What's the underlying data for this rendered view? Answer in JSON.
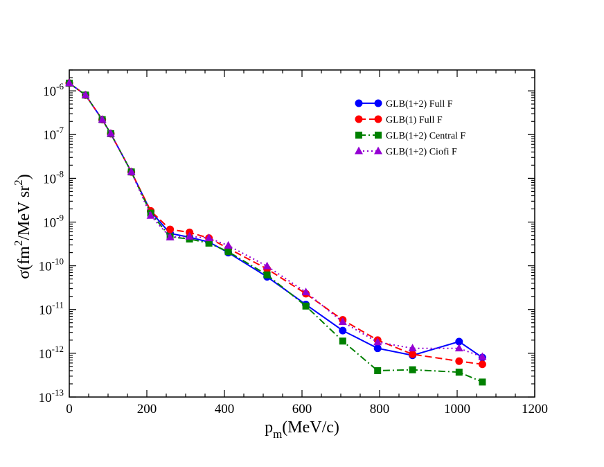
{
  "chart_data": {
    "type": "line",
    "title": "",
    "xlabel": "p_m(MeV/c)",
    "xlabel_main": "p",
    "xlabel_sub": "m",
    "xlabel_rest": "(MeV/c)",
    "ylabel": "σ(fm^2/MeV sr^2)",
    "ylabel_start": "σ(fm",
    "ylabel_sup1": "2",
    "ylabel_mid": "/MeV sr",
    "ylabel_sup2": "2",
    "ylabel_end": ")",
    "xlim": [
      0,
      1200
    ],
    "ylim": [
      1e-13,
      3e-06
    ],
    "yscale": "log",
    "legend_position": "top-right",
    "x_tick_labels": [
      "0",
      "200",
      "400",
      "600",
      "800",
      "1000",
      "1200"
    ],
    "y_tick_labels": [
      {
        "base": "10",
        "exp": "-6"
      },
      {
        "base": "10",
        "exp": "-7"
      },
      {
        "base": "10",
        "exp": "-8"
      },
      {
        "base": "10",
        "exp": "-9"
      },
      {
        "base": "10",
        "exp": "-10"
      },
      {
        "base": "10",
        "exp": "-11"
      },
      {
        "base": "10",
        "exp": "-12"
      },
      {
        "base": "10",
        "exp": "-13"
      }
    ],
    "series": [
      {
        "name": "GLB(1+2) Full F",
        "color": "#0000ff",
        "marker": "circle",
        "dash": "",
        "x": [
          0,
          42,
          85,
          107,
          160,
          210,
          260,
          310,
          360,
          410,
          510,
          610,
          705,
          795,
          885,
          1005,
          1065
        ],
        "y": [
          1.5e-06,
          8e-07,
          2.2e-07,
          1.05e-07,
          1.4e-08,
          1.75e-09,
          5.5e-10,
          4.5e-10,
          3.5e-10,
          2e-10,
          5.6e-11,
          1.3e-11,
          3.3e-12,
          1.3e-12,
          9e-13,
          1.85e-12,
          8e-13
        ]
      },
      {
        "name": "GLB(1) Full F",
        "color": "#ff0000",
        "marker": "circle",
        "dash": "10,5",
        "x": [
          0,
          42,
          85,
          107,
          160,
          210,
          260,
          310,
          360,
          410,
          510,
          610,
          705,
          795,
          885,
          1005,
          1065
        ],
        "y": [
          1.5e-06,
          8e-07,
          2.2e-07,
          1.05e-07,
          1.4e-08,
          1.8e-09,
          6.8e-10,
          5.8e-10,
          4.3e-10,
          2.5e-10,
          8.5e-11,
          2.3e-11,
          5.8e-12,
          2e-12,
          9.5e-13,
          6.6e-13,
          5.6e-13
        ]
      },
      {
        "name": "GLB(1+2) Central F",
        "color": "#008000",
        "marker": "square",
        "dash": "10,4,2,4",
        "x": [
          0,
          42,
          85,
          107,
          160,
          210,
          260,
          310,
          360,
          410,
          510,
          610,
          705,
          795,
          885,
          1005,
          1065
        ],
        "y": [
          1.5e-06,
          8e-07,
          2.2e-07,
          1.05e-07,
          1.4e-08,
          1.6e-09,
          4.6e-10,
          4.1e-10,
          3.3e-10,
          2.1e-10,
          6.2e-11,
          1.2e-11,
          1.9e-12,
          4e-13,
          4.2e-13,
          3.7e-13,
          2.2e-13
        ]
      },
      {
        "name": "GLB(1+2) Ciofi F",
        "color": "#9400d3",
        "marker": "triangle",
        "dash": "2,4",
        "x": [
          0,
          42,
          85,
          107,
          160,
          210,
          260,
          310,
          360,
          410,
          510,
          610,
          705,
          795,
          885,
          1005,
          1065
        ],
        "y": [
          1.5e-06,
          8e-07,
          2.2e-07,
          1.05e-07,
          1.4e-08,
          1.4e-09,
          4.5e-10,
          4.7e-10,
          4.3e-10,
          2.9e-10,
          9.8e-11,
          2.5e-11,
          5.2e-12,
          1.8e-12,
          1.3e-12,
          1.3e-12,
          8.3e-13
        ]
      }
    ]
  }
}
